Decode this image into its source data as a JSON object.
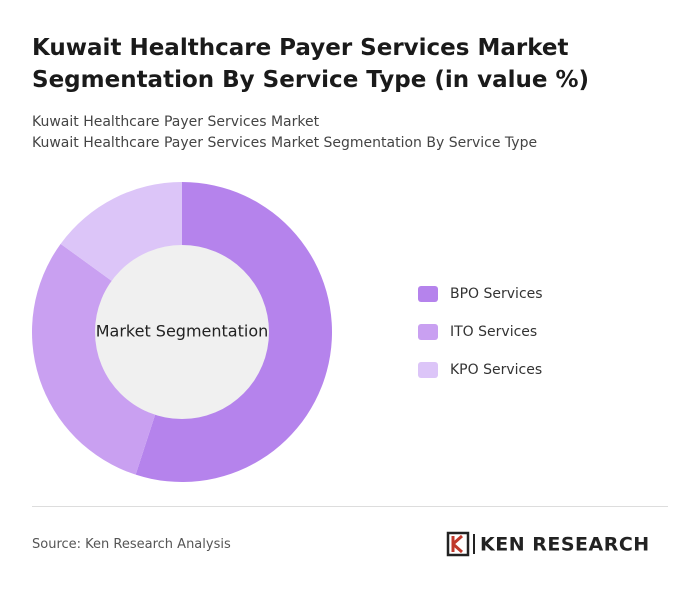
{
  "chart_data": {
    "type": "pie",
    "title": "Kuwait Healthcare Payer Services Market Segmentation By Service Type (in value %)",
    "subtitle": [
      "Kuwait Healthcare Payer Services Market",
      "Kuwait Healthcare Payer Services Market Segmentation By Service Type"
    ],
    "center_label": "Market Segmentation",
    "categories": [
      "BPO Services",
      "ITO Services",
      "KPO Services"
    ],
    "values": [
      55,
      30,
      15
    ],
    "colors": [
      "#b583ec",
      "#c9a0f1",
      "#dcc5f8"
    ],
    "source": "Source: Ken Research Analysis",
    "brand": "KEN RESEARCH"
  }
}
